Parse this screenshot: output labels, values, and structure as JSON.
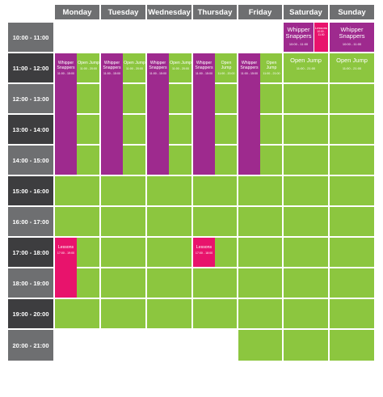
{
  "days": [
    "Monday",
    "Tuesday",
    "Wednesday",
    "Thursday",
    "Friday",
    "Saturday",
    "Sunday"
  ],
  "time_slots": [
    "10:00 - 11:00",
    "11:00 - 12:00",
    "12:00 - 13:00",
    "13:00 - 14:00",
    "14:00 - 15:00",
    "15:00 - 16:00",
    "16:00 - 17:00",
    "17:00 - 18:00",
    "18:00 - 19:00",
    "19:00 - 20:00",
    "20:00 - 21:00"
  ],
  "sessions": {
    "whipper_title": "Whipper Snappers",
    "whipper_weekday_time": "11:00 - 15:00",
    "whipper_weekend_time": "10:00 - 11:00",
    "open_jump_title": "Open Jump",
    "open_jump_weekday_time": "11:00 - 20:00",
    "open_jump_friday_time": "11:00 - 21:00",
    "open_jump_weekend_time": "11:00 - 21:00",
    "lessons_title": "Lessons",
    "lessons_weekday_time": "17:00 - 19:00",
    "lessons_thursday_time": "17:00 - 18:00",
    "lessons_saturday_time": "10:00 - 11:00"
  },
  "colors": {
    "header": "#6e6f71",
    "time_dark": "#3d3d3f",
    "green": "#8cc63f",
    "purple": "#9e2a8e",
    "pink": "#e8136c"
  }
}
